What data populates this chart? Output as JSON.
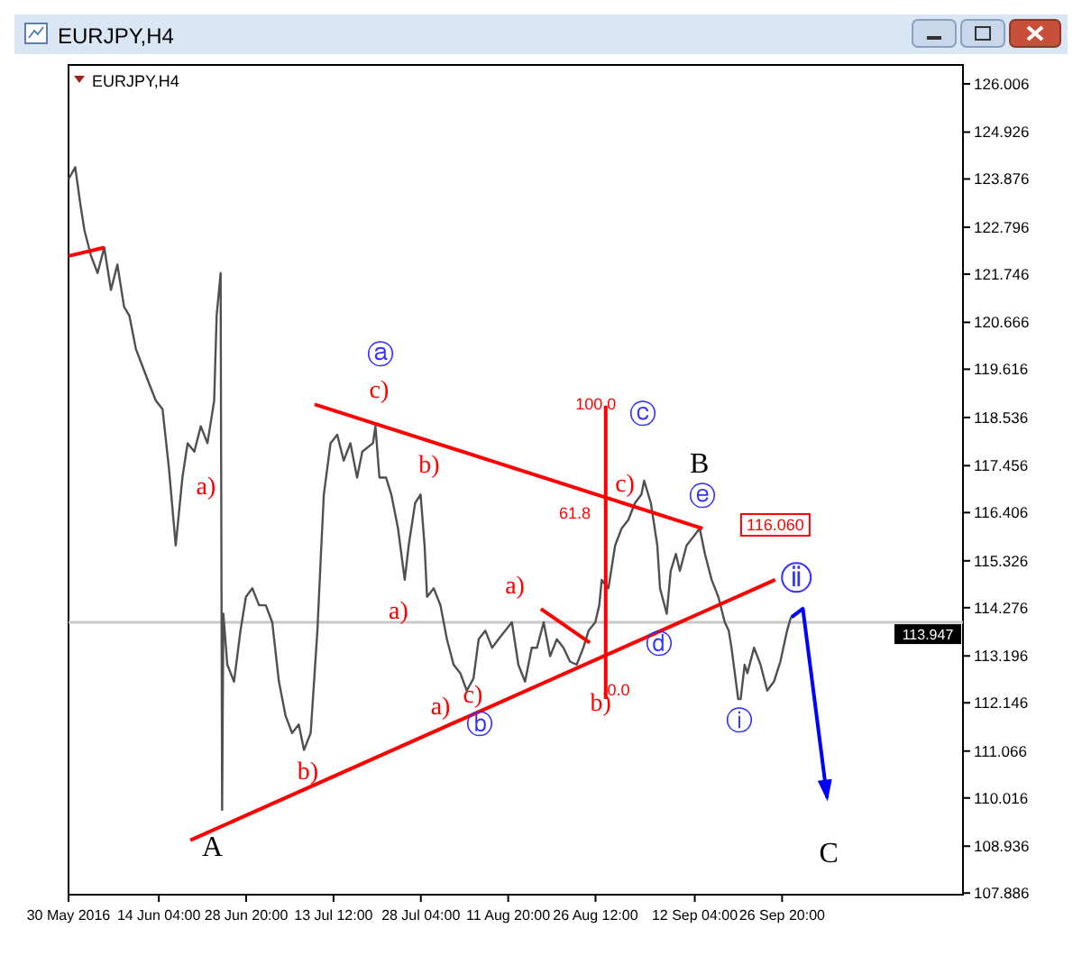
{
  "chart_data": {
    "type": "line",
    "title": "EURJPY,H4",
    "subtitle": "EURJPY,H4",
    "xlim": [
      "2016-05-30T00:00",
      "2016-10-27T05:00"
    ],
    "xticks": [
      {
        "value": "2016-05-30T00:00",
        "label": "30 May 2016"
      },
      {
        "value": "2016-06-14T04:00",
        "label": "14 Jun 04:00"
      },
      {
        "value": "2016-06-28T20:00",
        "label": "28 Jun 20:00"
      },
      {
        "value": "2016-07-13T12:00",
        "label": "13 Jul 12:00"
      },
      {
        "value": "2016-07-28T04:00",
        "label": "28 Jul 04:00"
      },
      {
        "value": "2016-08-11T20:00",
        "label": "11 Aug 20:00"
      },
      {
        "value": "2016-08-26T12:00",
        "label": "26 Aug 12:00"
      },
      {
        "value": "2016-09-12T04:00",
        "label": "12 Sep 04:00"
      },
      {
        "value": "2016-09-26T20:00",
        "label": "26 Sep 20:00"
      }
    ],
    "ylim": [
      107.85,
      126.43
    ],
    "yticks": [
      126.006,
      124.926,
      123.876,
      122.796,
      121.746,
      120.666,
      119.616,
      118.536,
      117.456,
      116.406,
      115.326,
      114.276,
      113.196,
      112.146,
      111.066,
      110.016,
      108.936,
      107.886
    ],
    "grid": false,
    "marker": "none",
    "line_style": "solid",
    "series": [
      {
        "color": "#505050",
        "x": [
          "2016-05-30T00:00",
          "2016-05-31T03:00",
          "2016-06-01T00:00",
          "2016-06-01T16:00",
          "2016-06-02T19:00",
          "2016-06-03T21:00",
          "2016-06-05T00:00",
          "2016-06-06T03:00",
          "2016-06-07T05:00",
          "2016-06-08T08:00",
          "2016-06-09T05:00",
          "2016-06-10T08:00",
          "2016-06-11T11:00",
          "2016-06-12T13:00",
          "2016-06-13T16:00",
          "2016-06-14T19:00",
          "2016-06-15T21:00",
          "2016-06-17T00:00",
          "2016-06-18T03:00",
          "2016-06-19T00:00",
          "2016-06-20T03:00",
          "2016-06-21T05:00",
          "2016-06-22T08:00",
          "2016-06-23T11:00",
          "2016-06-23T21:00",
          "2016-06-24T13:00",
          "2016-06-24T19:00",
          "2016-06-25T00:00",
          "2016-06-25T16:00",
          "2016-06-26T19:00",
          "2016-06-27T21:00",
          "2016-06-28T19:00",
          "2016-06-29T21:00",
          "2016-07-01T00:00",
          "2016-07-02T03:00",
          "2016-07-03T05:00",
          "2016-07-04T08:00",
          "2016-07-05T11:00",
          "2016-07-06T13:00",
          "2016-07-07T16:00",
          "2016-07-08T13:00",
          "2016-07-09T16:00",
          "2016-07-10T19:00",
          "2016-07-11T11:00",
          "2016-07-11T21:00",
          "2016-07-13T00:00",
          "2016-07-14T03:00",
          "2016-07-15T05:00",
          "2016-07-16T08:00",
          "2016-07-17T11:00",
          "2016-07-18T08:00",
          "2016-07-20T03:00",
          "2016-07-20T13:00",
          "2016-07-21T05:00",
          "2016-07-22T08:00",
          "2016-07-23T05:00",
          "2016-07-24T08:00",
          "2016-07-25T11:00",
          "2016-07-26T03:00",
          "2016-07-27T05:00",
          "2016-07-28T03:00",
          "2016-07-28T19:00",
          "2016-07-29T05:00",
          "2016-07-30T08:00",
          "2016-07-31T11:00",
          "2016-08-01T13:00",
          "2016-08-02T16:00",
          "2016-08-03T19:00",
          "2016-08-04T21:00",
          "2016-08-06T00:00",
          "2016-08-06T21:00",
          "2016-08-08T00:00",
          "2016-08-09T03:00",
          "2016-08-10T05:00",
          "2016-08-11T08:00",
          "2016-08-12T11:00",
          "2016-08-13T13:00",
          "2016-08-14T16:00",
          "2016-08-15T19:00",
          "2016-08-16T16:00",
          "2016-08-17T19:00",
          "2016-08-18T21:00",
          "2016-08-20T00:00",
          "2016-08-21T03:00",
          "2016-08-22T05:00",
          "2016-08-23T08:00",
          "2016-08-24T11:00",
          "2016-08-25T08:00",
          "2016-08-26T11:00",
          "2016-08-27T03:00",
          "2016-08-27T13:00",
          "2016-08-28T16:00",
          "2016-08-29T19:00",
          "2016-08-30T21:00",
          "2016-09-01T00:00",
          "2016-09-02T03:00",
          "2016-09-03T05:00",
          "2016-09-03T16:00",
          "2016-09-04T19:00",
          "2016-09-05T21:00",
          "2016-09-06T08:00",
          "2016-09-07T11:00",
          "2016-09-08T03:00",
          "2016-09-09T00:00",
          "2016-09-09T16:00",
          "2016-09-10T19:00",
          "2016-09-13T00:00",
          "2016-09-13T21:00",
          "2016-09-15T00:00",
          "2016-09-16T03:00",
          "2016-09-17T05:00",
          "2016-09-17T21:00",
          "2016-09-18T08:00",
          "2016-09-19T11:00",
          "2016-09-19T21:00",
          "2016-09-20T13:00",
          "2016-09-21T00:00",
          "2016-09-22T03:00",
          "2016-09-23T05:00",
          "2016-09-24T08:00",
          "2016-09-25T11:00",
          "2016-09-26T13:00",
          "2016-09-27T16:00",
          "2016-09-28T08:00"
        ],
        "values": [
          123.87,
          124.14,
          123.3,
          122.73,
          122.15,
          121.77,
          122.34,
          121.39,
          121.96,
          121.01,
          120.82,
          120.06,
          119.67,
          119.29,
          118.91,
          118.72,
          117.38,
          115.67,
          117.19,
          117.96,
          117.77,
          118.34,
          117.96,
          118.91,
          120.82,
          121.77,
          109.75,
          114.14,
          113.0,
          112.62,
          113.76,
          114.52,
          114.71,
          114.33,
          114.33,
          113.95,
          112.62,
          111.85,
          111.47,
          111.66,
          111.09,
          111.47,
          113.76,
          115.67,
          116.81,
          117.96,
          118.15,
          117.57,
          117.96,
          117.19,
          117.77,
          117.96,
          118.34,
          117.19,
          117.19,
          116.81,
          116.05,
          114.9,
          115.67,
          116.62,
          116.81,
          115.67,
          114.52,
          114.71,
          114.33,
          113.57,
          113.0,
          112.81,
          112.42,
          112.69,
          113.57,
          113.76,
          113.38,
          113.57,
          113.76,
          113.95,
          113.0,
          112.62,
          113.38,
          113.38,
          113.95,
          113.19,
          113.57,
          113.38,
          113.07,
          113.0,
          113.38,
          113.76,
          113.95,
          114.33,
          114.9,
          114.71,
          115.67,
          116.05,
          116.24,
          116.62,
          116.81,
          117.12,
          116.62,
          115.67,
          114.71,
          114.14,
          115.1,
          115.48,
          115.1,
          115.67,
          116.05,
          115.48,
          114.9,
          114.52,
          113.95,
          113.76,
          113.38,
          112.23,
          112.23,
          113.0,
          112.81,
          113.38,
          113.0,
          112.42,
          112.62,
          113.07,
          113.76,
          114.07
        ]
      },
      {
        "color": "#ff0000",
        "x": [
          "2016-07-10T08:00",
          "2016-09-13T11:00"
        ],
        "values": [
          118.83,
          116.05
        ]
      },
      {
        "color": "#ff0000",
        "x": [
          "2016-06-19T11:00",
          "2016-09-25T16:00"
        ],
        "values": [
          109.07,
          114.9
        ]
      },
      {
        "color": "#ff0000",
        "x": [
          "2016-05-30T00:00",
          "2016-06-05T00:00"
        ],
        "values": [
          122.15,
          122.34
        ]
      },
      {
        "color": "#ff0000",
        "x": [
          "2016-08-17T08:00",
          "2016-08-25T13:00"
        ],
        "values": [
          114.25,
          113.49
        ]
      },
      {
        "color": "#ff0000",
        "x": [
          "2016-08-28T05:00",
          "2016-08-28T05:00"
        ],
        "values": [
          118.8,
          112.23
        ]
      }
    ],
    "ref_lines": [
      {
        "axis": "y",
        "value": 113.947,
        "label": "113.947",
        "color": "#c8c8c8"
      }
    ],
    "annotations": [
      "a)",
      "A",
      "b)",
      "ⓐ",
      "c)",
      "b)",
      "a)",
      "a)",
      "c)",
      "a)",
      "ⓑ",
      "b)",
      "ⓒ",
      "c)",
      "B",
      "ⓔ",
      "ⓓ",
      "ⓘ",
      "ⅱ",
      "C",
      "100.0",
      "61.8",
      "0.0",
      "116.060"
    ]
  }
}
